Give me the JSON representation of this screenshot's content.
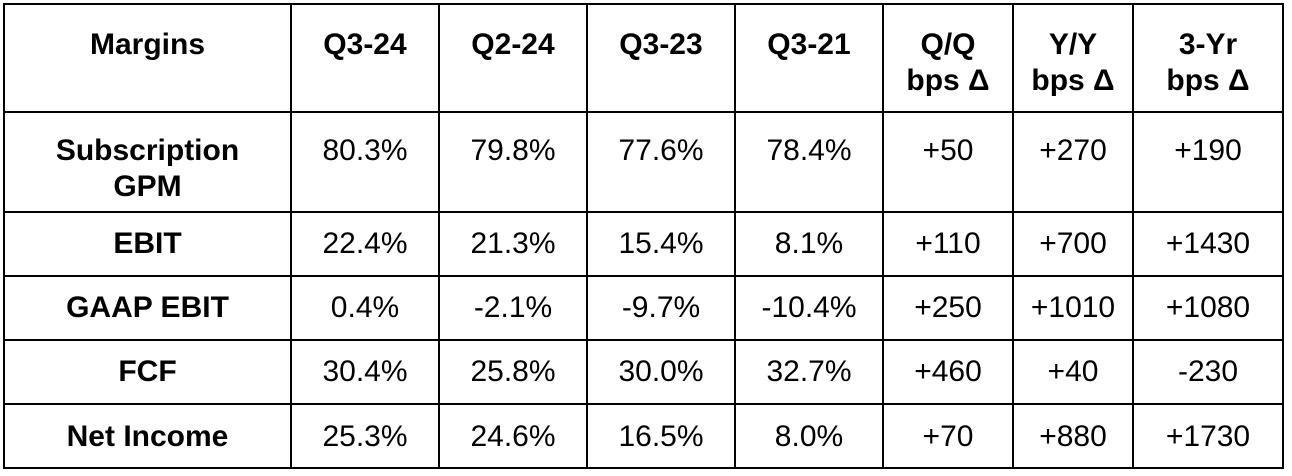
{
  "table": {
    "header": [
      {
        "key": "margins",
        "lines": [
          "Margins"
        ]
      },
      {
        "key": "q3-24",
        "lines": [
          "Q3-24"
        ]
      },
      {
        "key": "q2-24",
        "lines": [
          "Q2-24"
        ]
      },
      {
        "key": "q3-23",
        "lines": [
          "Q3-23"
        ]
      },
      {
        "key": "q3-21",
        "lines": [
          "Q3-21"
        ]
      },
      {
        "key": "qq-bps",
        "lines": [
          "Q/Q",
          "bps Δ"
        ]
      },
      {
        "key": "yy-bps",
        "lines": [
          "Y/Y",
          "bps Δ"
        ]
      },
      {
        "key": "3yr-bps",
        "lines": [
          "3-Yr",
          "bps Δ"
        ]
      }
    ],
    "rows": [
      {
        "label_lines": [
          "Subscription",
          "GPM"
        ],
        "values": [
          "80.3%",
          "79.8%",
          "77.6%",
          "78.4%",
          "+50",
          "+270",
          "+190"
        ]
      },
      {
        "label_lines": [
          "EBIT"
        ],
        "values": [
          "22.4%",
          "21.3%",
          "15.4%",
          "8.1%",
          "+110",
          "+700",
          "+1430"
        ]
      },
      {
        "label_lines": [
          "GAAP EBIT"
        ],
        "values": [
          "0.4%",
          "-2.1%",
          "-9.7%",
          "-10.4%",
          "+250",
          "+1010",
          "+1080"
        ]
      },
      {
        "label_lines": [
          "FCF"
        ],
        "values": [
          "30.4%",
          "25.8%",
          "30.0%",
          "32.7%",
          "+460",
          "+40",
          "-230"
        ]
      },
      {
        "label_lines": [
          "Net Income"
        ],
        "values": [
          "25.3%",
          "24.6%",
          "16.5%",
          "8.0%",
          "+70",
          "+880",
          "+1730"
        ]
      }
    ]
  }
}
